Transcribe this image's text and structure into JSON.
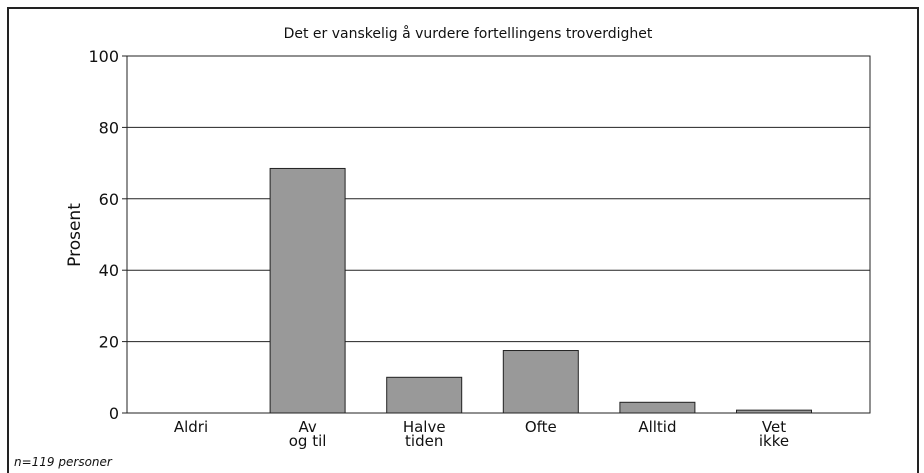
{
  "chart_data": {
    "type": "bar",
    "title": "Det er vanskelig å vurdere fortellingens troverdighet",
    "ylabel": "Prosent",
    "note": "n=119 personer",
    "categories": [
      "Aldri",
      "Av\nog til",
      "Halve\ntiden",
      "Ofte",
      "Alltid",
      "Vet\nikke"
    ],
    "values": [
      0,
      68.5,
      10,
      17.5,
      3,
      0.8
    ],
    "color": "#999999",
    "ylim": [
      0,
      100
    ],
    "yticks": [
      0,
      20,
      40,
      60,
      80,
      100
    ],
    "grid": true
  }
}
